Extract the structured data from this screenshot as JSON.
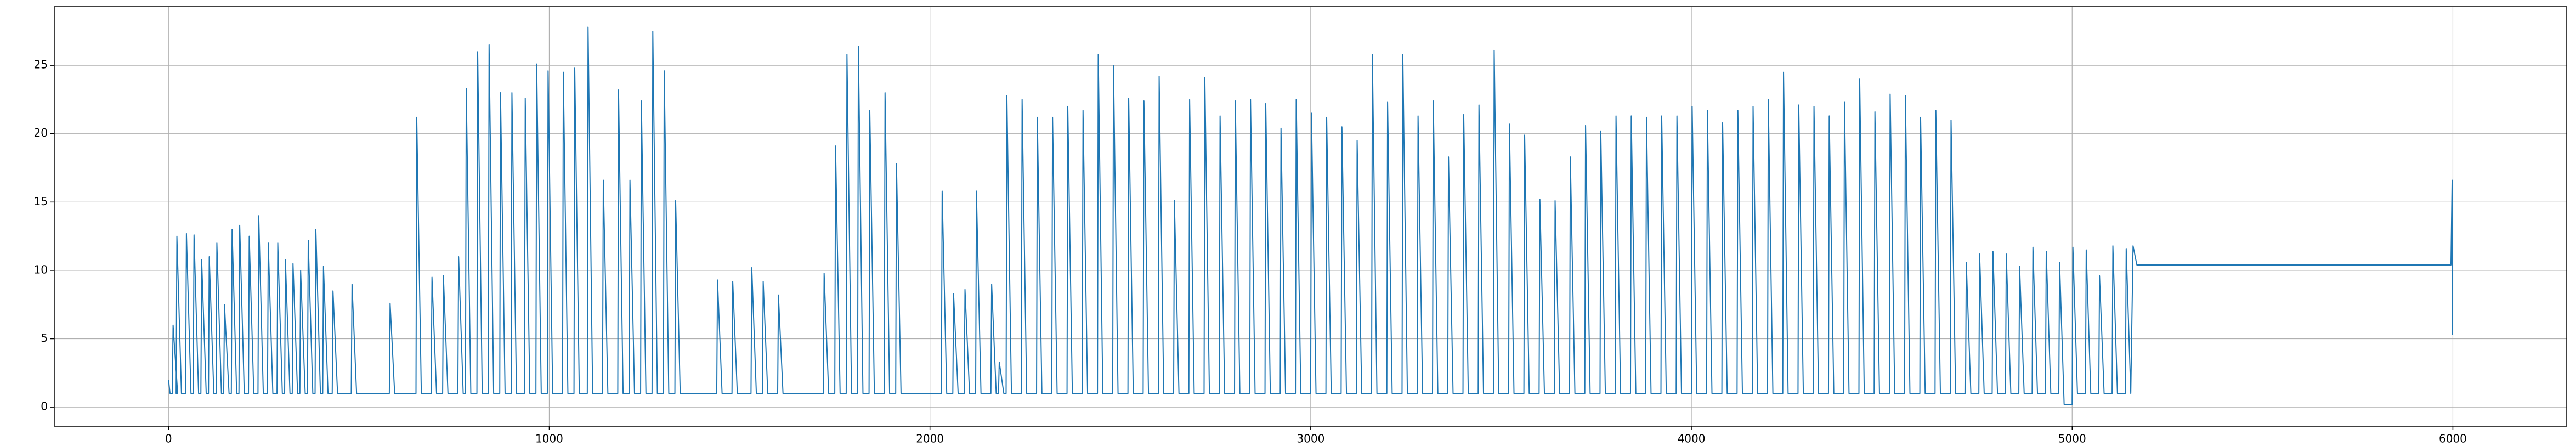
{
  "chart_data": {
    "type": "line",
    "color": "#1f77b4",
    "grid": true,
    "xlim": [
      -300,
      6299
    ],
    "ylim": [
      -1.4,
      29.3
    ],
    "xticks": [
      0,
      1000,
      2000,
      3000,
      4000,
      5000,
      6000
    ],
    "yticks": [
      0,
      5,
      10,
      15,
      20,
      25
    ],
    "x": [
      0,
      4,
      10,
      12,
      24,
      20,
      22,
      34,
      45,
      47,
      59,
      65,
      67,
      79,
      85,
      87,
      99,
      105,
      107,
      119,
      125,
      127,
      139,
      145,
      147,
      159,
      165,
      167,
      179,
      185,
      187,
      199,
      210,
      212,
      224,
      235,
      237,
      249,
      260,
      262,
      274,
      285,
      287,
      299,
      305,
      307,
      319,
      325,
      327,
      339,
      345,
      347,
      359,
      365,
      367,
      379,
      385,
      387,
      399,
      405,
      407,
      419,
      430,
      432,
      444,
      480,
      482,
      494,
      580,
      582,
      594,
      650,
      652,
      664,
      690,
      692,
      704,
      720,
      722,
      734,
      760,
      762,
      774,
      780,
      782,
      794,
      810,
      812,
      824,
      840,
      842,
      854,
      870,
      872,
      884,
      900,
      902,
      914,
      935,
      937,
      949,
      965,
      967,
      979,
      995,
      997,
      1009,
      1035,
      1037,
      1049,
      1065,
      1067,
      1079,
      1100,
      1102,
      1114,
      1140,
      1142,
      1154,
      1180,
      1182,
      1194,
      1210,
      1212,
      1224,
      1240,
      1242,
      1254,
      1270,
      1272,
      1284,
      1300,
      1302,
      1314,
      1330,
      1332,
      1344,
      1440,
      1442,
      1454,
      1480,
      1482,
      1494,
      1530,
      1532,
      1544,
      1560,
      1562,
      1574,
      1600,
      1602,
      1614,
      1720,
      1722,
      1734,
      1750,
      1752,
      1764,
      1780,
      1782,
      1794,
      1810,
      1812,
      1824,
      1840,
      1842,
      1854,
      1880,
      1882,
      1894,
      1910,
      1912,
      1924,
      2030,
      2032,
      2044,
      2060,
      2062,
      2074,
      2090,
      2092,
      2104,
      2120,
      2122,
      2134,
      2160,
      2162,
      2174,
      2180,
      2182,
      2194,
      2200,
      2202,
      2214,
      2240,
      2242,
      2254,
      2280,
      2282,
      2294,
      2320,
      2322,
      2334,
      2360,
      2362,
      2374,
      2400,
      2402,
      2414,
      2440,
      2442,
      2454,
      2480,
      2482,
      2494,
      2520,
      2522,
      2534,
      2560,
      2562,
      2574,
      2600,
      2602,
      2614,
      2640,
      2642,
      2654,
      2680,
      2682,
      2694,
      2720,
      2722,
      2734,
      2760,
      2762,
      2774,
      2800,
      2802,
      2814,
      2840,
      2842,
      2854,
      2880,
      2882,
      2894,
      2920,
      2922,
      2934,
      2960,
      2962,
      2974,
      3000,
      3002,
      3014,
      3040,
      3042,
      3054,
      3080,
      3082,
      3094,
      3120,
      3122,
      3134,
      3160,
      3162,
      3174,
      3200,
      3202,
      3214,
      3240,
      3242,
      3254,
      3280,
      3282,
      3294,
      3320,
      3322,
      3334,
      3360,
      3362,
      3374,
      3400,
      3402,
      3414,
      3440,
      3442,
      3454,
      3480,
      3482,
      3494,
      3520,
      3522,
      3534,
      3560,
      3562,
      3574,
      3600,
      3602,
      3614,
      3640,
      3642,
      3654,
      3680,
      3682,
      3694,
      3720,
      3722,
      3734,
      3760,
      3762,
      3774,
      3800,
      3802,
      3814,
      3840,
      3842,
      3854,
      3880,
      3882,
      3894,
      3920,
      3922,
      3934,
      3960,
      3962,
      3974,
      4000,
      4002,
      4014,
      4040,
      4042,
      4054,
      4080,
      4082,
      4094,
      4120,
      4122,
      4134,
      4160,
      4162,
      4174,
      4200,
      4202,
      4214,
      4240,
      4242,
      4254,
      4280,
      4282,
      4294,
      4320,
      4322,
      4334,
      4360,
      4362,
      4374,
      4400,
      4402,
      4414,
      4440,
      4442,
      4454,
      4480,
      4482,
      4494,
      4520,
      4522,
      4534,
      4560,
      4562,
      4574,
      4600,
      4602,
      4614,
      4640,
      4642,
      4654,
      4680,
      4682,
      4694,
      4720,
      4722,
      4734,
      4755,
      4757,
      4769,
      4790,
      4792,
      4804,
      4825,
      4827,
      4839,
      4860,
      4862,
      4874,
      4895,
      4897,
      4909,
      4930,
      4932,
      4944,
      4965,
      4967,
      4979,
      5000,
      5002,
      5014,
      5035,
      5037,
      5049,
      5070,
      5072,
      5084,
      5105,
      5107,
      5119,
      5140,
      5142,
      5154,
      5160,
      5170,
      5995,
      5998,
      5999
    ],
    "values": [
      2,
      1,
      1,
      6,
      1,
      1,
      12.5,
      1,
      1,
      12.7,
      1,
      1,
      12.6,
      1,
      1,
      10.8,
      1,
      1,
      11,
      1,
      1,
      12,
      1,
      1,
      7.5,
      1,
      1,
      13,
      1,
      1,
      13.3,
      1,
      1,
      12.5,
      1,
      1,
      14,
      1,
      1,
      12,
      1,
      1,
      12,
      1,
      1,
      10.8,
      1,
      1,
      10.5,
      1,
      1,
      10,
      1,
      1,
      12.2,
      1,
      1,
      13,
      1,
      1,
      10.3,
      1,
      1,
      8.5,
      1,
      1,
      9,
      1,
      1,
      7.6,
      1,
      1,
      21.2,
      1,
      1,
      9.5,
      1,
      1,
      9.6,
      1,
      1,
      11,
      1,
      1,
      23.3,
      1,
      1,
      26,
      1,
      1,
      26.5,
      1,
      1,
      23,
      1,
      1,
      23,
      1,
      1,
      22.6,
      1,
      1,
      25.1,
      1,
      1,
      24.6,
      1,
      1,
      24.5,
      1,
      1,
      24.8,
      1,
      1,
      27.8,
      1,
      1,
      16.6,
      1,
      1,
      23.2,
      1,
      1,
      16.6,
      1,
      1,
      22.4,
      1,
      1,
      27.5,
      1,
      1,
      24.6,
      1,
      1,
      15.1,
      1,
      1,
      9.3,
      1,
      1,
      9.2,
      1,
      1,
      10.2,
      1,
      1,
      9.2,
      1,
      1,
      8.2,
      1,
      1,
      9.8,
      1,
      1,
      19.1,
      1,
      1,
      25.8,
      1,
      1,
      26.4,
      1,
      1,
      21.7,
      1,
      1,
      23,
      1,
      1,
      17.8,
      1,
      1,
      15.8,
      1,
      1,
      8.3,
      1,
      1,
      8.6,
      1,
      1,
      15.8,
      1,
      1,
      9,
      1,
      1,
      3.3,
      1,
      1,
      22.8,
      1,
      1,
      22.5,
      1,
      1,
      21.2,
      1,
      1,
      21.2,
      1,
      1,
      22,
      1,
      1,
      21.7,
      1,
      1,
      25.8,
      1,
      1,
      25,
      1,
      1,
      22.6,
      1,
      1,
      22.4,
      1,
      1,
      24.2,
      1,
      1,
      15.1,
      1,
      1,
      22.5,
      1,
      1,
      24.1,
      1,
      1,
      21.3,
      1,
      1,
      22.4,
      1,
      1,
      22.5,
      1,
      1,
      22.2,
      1,
      1,
      20.4,
      1,
      1,
      22.5,
      1,
      1,
      21.5,
      1,
      1,
      21.2,
      1,
      1,
      20.5,
      1,
      1,
      19.5,
      1,
      1,
      25.8,
      1,
      1,
      22.3,
      1,
      1,
      25.8,
      1,
      1,
      21.3,
      1,
      1,
      22.4,
      1,
      1,
      18.3,
      1,
      1,
      21.4,
      1,
      1,
      22.1,
      1,
      1,
      26.1,
      1,
      1,
      20.7,
      1,
      1,
      19.9,
      1,
      1,
      15.2,
      1,
      1,
      15.1,
      1,
      1,
      18.3,
      1,
      1,
      20.6,
      1,
      1,
      20.2,
      1,
      1,
      21.3,
      1,
      1,
      21.3,
      1,
      1,
      21.2,
      1,
      1,
      21.3,
      1,
      1,
      21.3,
      1,
      1,
      22,
      1,
      1,
      21.7,
      1,
      1,
      20.8,
      1,
      1,
      21.7,
      1,
      1,
      22,
      1,
      1,
      22.5,
      1,
      1,
      24.5,
      1,
      1,
      22.1,
      1,
      1,
      22,
      1,
      1,
      21.3,
      1,
      1,
      22.3,
      1,
      1,
      24,
      1,
      1,
      21.6,
      1,
      1,
      22.9,
      1,
      1,
      22.8,
      1,
      1,
      21.2,
      1,
      1,
      21.7,
      1,
      1,
      21,
      1,
      1,
      10.6,
      1,
      1,
      11.2,
      1,
      1,
      11.4,
      1,
      1,
      11.2,
      1,
      1,
      10.3,
      1,
      1,
      11.7,
      1,
      1,
      11.4,
      1,
      1,
      10.6,
      0.2,
      0.2,
      11.7,
      1,
      1,
      11.5,
      1,
      1,
      9.6,
      1,
      1,
      11.8,
      1,
      1,
      11.6,
      1,
      11.8,
      10.4,
      10.4,
      16.6,
      5.3
    ]
  }
}
